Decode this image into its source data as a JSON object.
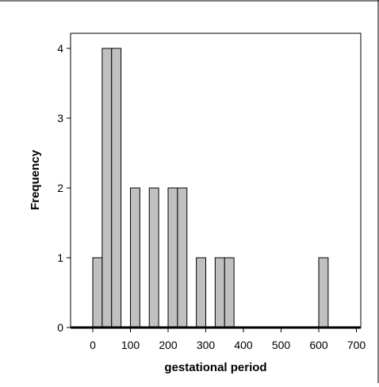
{
  "chart_data": {
    "type": "bar",
    "title": "",
    "xlabel": "gestational period",
    "ylabel": "Frequency",
    "xlim": [
      -50,
      700
    ],
    "ylim": [
      0,
      4
    ],
    "x_ticks": [
      0,
      100,
      200,
      300,
      400,
      500,
      600,
      700
    ],
    "y_ticks": [
      0,
      1,
      2,
      3,
      4
    ],
    "bin_width": 25,
    "bins": [
      {
        "start": 0,
        "end": 25,
        "count": 1
      },
      {
        "start": 25,
        "end": 50,
        "count": 4
      },
      {
        "start": 50,
        "end": 75,
        "count": 4
      },
      {
        "start": 100,
        "end": 125,
        "count": 2
      },
      {
        "start": 150,
        "end": 175,
        "count": 2
      },
      {
        "start": 200,
        "end": 225,
        "count": 2
      },
      {
        "start": 225,
        "end": 250,
        "count": 2
      },
      {
        "start": 275,
        "end": 300,
        "count": 1
      },
      {
        "start": 325,
        "end": 350,
        "count": 1
      },
      {
        "start": 350,
        "end": 375,
        "count": 1
      },
      {
        "start": 600,
        "end": 625,
        "count": 1
      }
    ],
    "grid": false,
    "colors": {
      "bar_fill": "#c0c0c0",
      "bar_stroke": "#000000",
      "background": "#ffffff"
    }
  }
}
